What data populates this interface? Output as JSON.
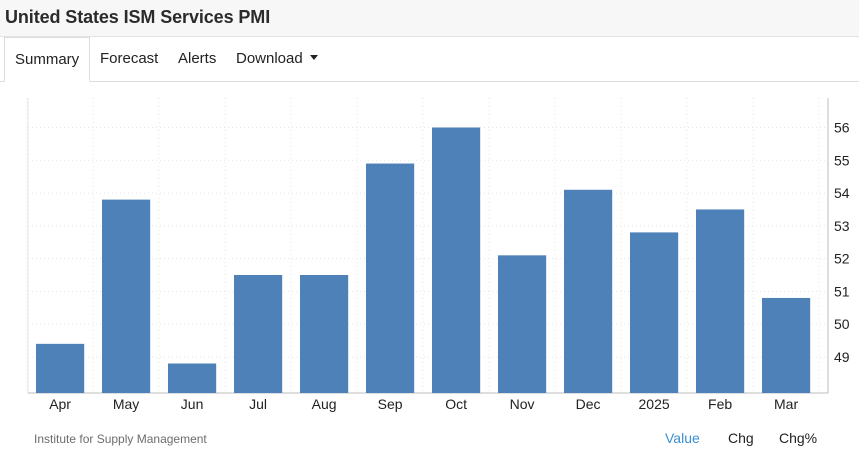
{
  "header": {
    "title": "United States ISM Services PMI"
  },
  "tabs": [
    {
      "label": "Summary"
    },
    {
      "label": "Forecast"
    },
    {
      "label": "Alerts"
    },
    {
      "label": "Download"
    }
  ],
  "footer": {
    "source": "Institute for Supply Management",
    "views": [
      {
        "label": "Value"
      },
      {
        "label": "Chg"
      },
      {
        "label": "Chg%"
      }
    ]
  },
  "colors": {
    "bar": "#4f81b9",
    "active_link": "#3b8fd1"
  },
  "chart_data": {
    "type": "bar",
    "title": "",
    "xlabel": "",
    "ylabel": "",
    "categories": [
      "Apr",
      "May",
      "Jun",
      "Jul",
      "Aug",
      "Sep",
      "Oct",
      "Nov",
      "Dec",
      "2025",
      "Feb",
      "Mar"
    ],
    "values": [
      49.4,
      53.8,
      48.8,
      51.5,
      51.5,
      54.9,
      56.0,
      52.1,
      54.1,
      52.8,
      53.5,
      50.8
    ],
    "y_ticks": [
      49,
      50,
      51,
      52,
      53,
      54,
      55,
      56
    ],
    "ylim": [
      47.9,
      56.9
    ],
    "y_axis_side": "right",
    "grid": true
  }
}
